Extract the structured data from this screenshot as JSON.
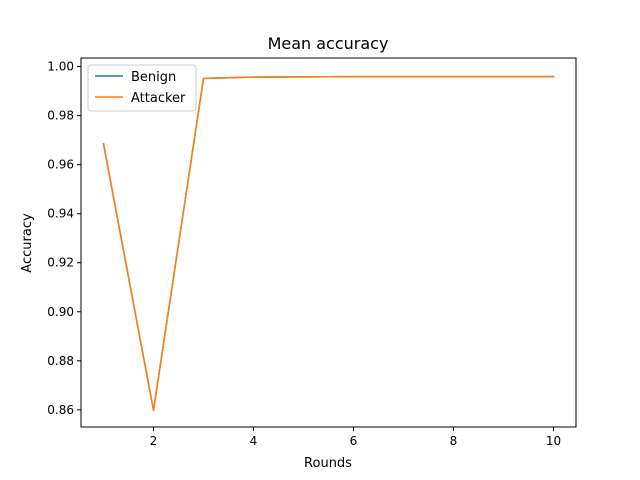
{
  "chart_data": {
    "type": "line",
    "title": "Mean accuracy",
    "xlabel": "Rounds",
    "ylabel": "Accuracy",
    "xlim": [
      0.55,
      10.45
    ],
    "ylim": [
      0.853,
      1.0035
    ],
    "xticks": [
      2,
      4,
      6,
      8,
      10
    ],
    "yticks": [
      0.86,
      0.88,
      0.9,
      0.92,
      0.94,
      0.96,
      0.98,
      1.0
    ],
    "ytick_labels": [
      "0.86",
      "0.88",
      "0.90",
      "0.92",
      "0.94",
      "0.96",
      "0.98",
      "1.00"
    ],
    "grid": false,
    "legend_position": "top-left",
    "x": [
      1,
      2,
      3,
      4,
      5,
      6,
      7,
      8,
      9,
      10
    ],
    "series": [
      {
        "name": "Benign",
        "color": "#1f77b4",
        "values": [
          0.9685,
          0.8598,
          0.9952,
          0.9957,
          0.9958,
          0.9959,
          0.9959,
          0.9959,
          0.9959,
          0.9959
        ]
      },
      {
        "name": "Attacker",
        "color": "#ff7f0e",
        "values": [
          0.9685,
          0.8598,
          0.9952,
          0.9957,
          0.9958,
          0.9959,
          0.9959,
          0.9959,
          0.9959,
          0.9959
        ]
      }
    ]
  }
}
